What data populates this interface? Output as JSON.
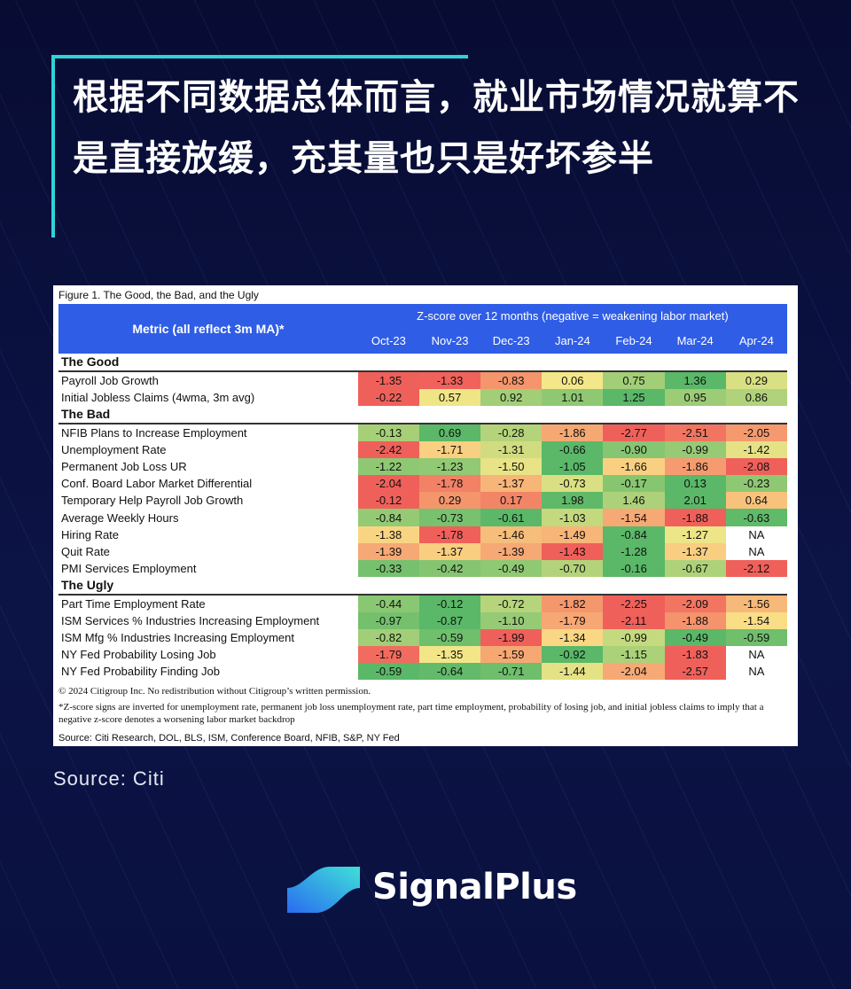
{
  "title": "根据不同数据总体而言，就业市场情况就算不是直接放缓，充其量也只是好坏参半",
  "source_text": "Source: Citi",
  "brand": "SignalPlus",
  "colors": {
    "header": "#2f5de6",
    "accent": "#2fd3d8",
    "red": "#f0605a",
    "yellow": "#fbe98a",
    "green": "#5ab868"
  },
  "chart_data": {
    "type": "heatmap",
    "title": "Figure 1. The Good, the Bad, and the Ugly",
    "metric_header": "Metric (all reflect 3m MA)*",
    "group_header": "Z-score over 12 months (negative = weakening labor market)",
    "columns": [
      "Oct-23",
      "Nov-23",
      "Dec-23",
      "Jan-24",
      "Feb-24",
      "Mar-24",
      "Apr-24"
    ],
    "sections": [
      {
        "name": "The Good",
        "rows": [
          {
            "metric": "Payroll Job Growth",
            "values": [
              "-1.35",
              "-1.33",
              "-0.83",
              "0.06",
              "0.75",
              "1.36",
              "0.29"
            ]
          },
          {
            "metric": "Initial Jobless Claims (4wma, 3m avg)",
            "values": [
              "-0.22",
              "0.57",
              "0.92",
              "1.01",
              "1.25",
              "0.95",
              "0.86"
            ]
          }
        ]
      },
      {
        "name": "The Bad",
        "rows": [
          {
            "metric": "NFIB Plans to Increase Employment",
            "values": [
              "-0.13",
              "0.69",
              "-0.28",
              "-1.86",
              "-2.77",
              "-2.51",
              "-2.05"
            ]
          },
          {
            "metric": "Unemployment Rate",
            "values": [
              "-2.42",
              "-1.71",
              "-1.31",
              "-0.66",
              "-0.90",
              "-0.99",
              "-1.42"
            ]
          },
          {
            "metric": "Permanent Job Loss UR",
            "values": [
              "-1.22",
              "-1.23",
              "-1.50",
              "-1.05",
              "-1.66",
              "-1.86",
              "-2.08"
            ]
          },
          {
            "metric": "Conf. Board Labor Market Differential",
            "values": [
              "-2.04",
              "-1.78",
              "-1.37",
              "-0.73",
              "-0.17",
              "0.13",
              "-0.23"
            ]
          },
          {
            "metric": "Temporary Help Payroll Job Growth",
            "values": [
              "-0.12",
              "0.29",
              "0.17",
              "1.98",
              "1.46",
              "2.01",
              "0.64"
            ]
          },
          {
            "metric": "Average Weekly Hours",
            "values": [
              "-0.84",
              "-0.73",
              "-0.61",
              "-1.03",
              "-1.54",
              "-1.88",
              "-0.63"
            ]
          },
          {
            "metric": "Hiring Rate",
            "values": [
              "-1.38",
              "-1.78",
              "-1.46",
              "-1.49",
              "-0.84",
              "-1.27",
              "NA"
            ]
          },
          {
            "metric": "Quit Rate",
            "values": [
              "-1.39",
              "-1.37",
              "-1.39",
              "-1.43",
              "-1.28",
              "-1.37",
              "NA"
            ]
          },
          {
            "metric": "PMI Services Employment",
            "values": [
              "-0.33",
              "-0.42",
              "-0.49",
              "-0.70",
              "-0.16",
              "-0.67",
              "-2.12"
            ]
          }
        ]
      },
      {
        "name": "The Ugly",
        "rows": [
          {
            "metric": "Part Time Employment Rate",
            "values": [
              "-0.44",
              "-0.12",
              "-0.72",
              "-1.82",
              "-2.25",
              "-2.09",
              "-1.56"
            ]
          },
          {
            "metric": "ISM Services % Industries Increasing Employment",
            "values": [
              "-0.97",
              "-0.87",
              "-1.10",
              "-1.79",
              "-2.11",
              "-1.88",
              "-1.54"
            ]
          },
          {
            "metric": "ISM Mfg % Industries Increasing Employment",
            "values": [
              "-0.82",
              "-0.59",
              "-1.99",
              "-1.34",
              "-0.99",
              "-0.49",
              "-0.59"
            ]
          },
          {
            "metric": "NY Fed Probability Losing Job",
            "values": [
              "-1.79",
              "-1.35",
              "-1.59",
              "-0.92",
              "-1.15",
              "-1.83",
              "NA"
            ]
          },
          {
            "metric": "NY Fed Probability Finding Job",
            "values": [
              "-0.59",
              "-0.64",
              "-0.71",
              "-1.44",
              "-2.04",
              "-2.57",
              "NA"
            ]
          }
        ]
      }
    ],
    "copyright": "© 2024 Citigroup Inc. No redistribution without Citigroup’s written permission.",
    "footnote": "*Z-score signs are inverted for unemployment rate, permanent job loss unemployment rate, part time employment, probability of losing job, and initial jobless claims to imply that a negative z-score denotes a worsening labor market backdrop",
    "source": "Source: Citi Research, DOL, BLS, ISM, Conference Board, NFIB, S&P, NY Fed"
  }
}
